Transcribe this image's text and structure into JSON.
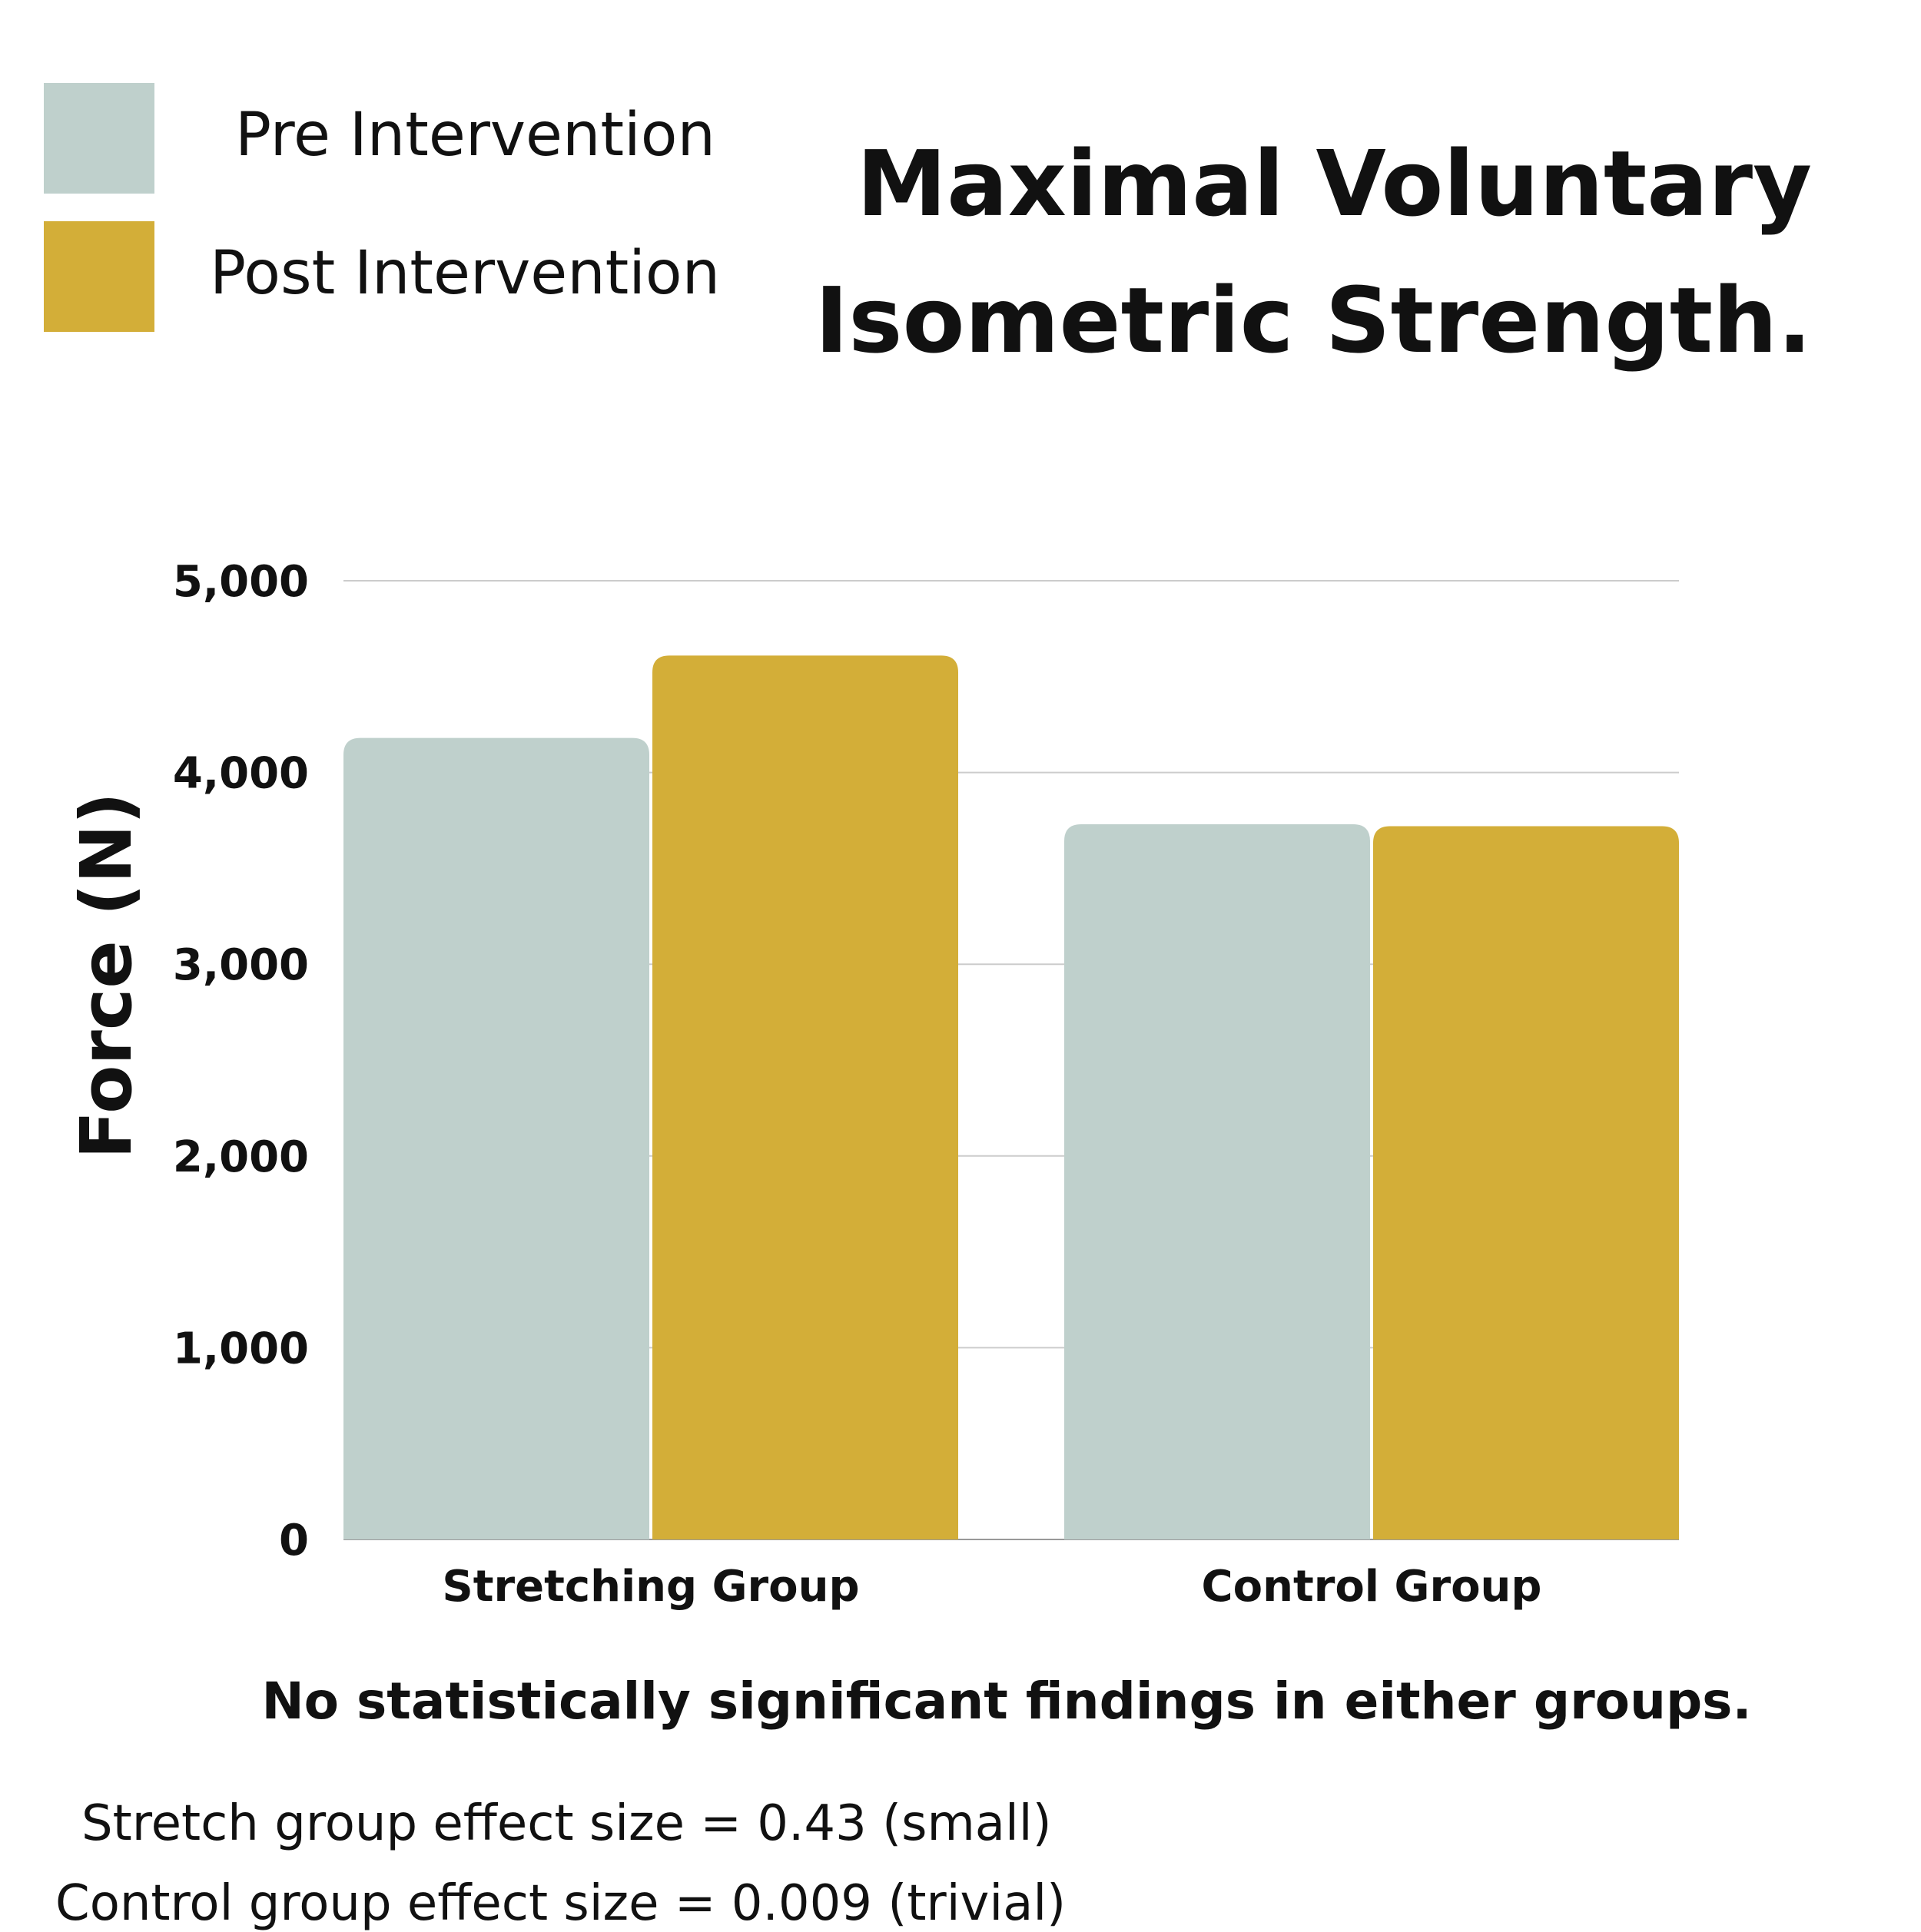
{
  "title": "Maximal Voluntary Isometric Strength.",
  "legend": {
    "items": [
      {
        "label": "Pre Intervention",
        "color": "#bfd0cc"
      },
      {
        "label": "Post Intervention",
        "color": "#d3ae38"
      }
    ]
  },
  "notes": {
    "significance": "No statistically significant findings in either groups.",
    "stretch_effect": "Stretch group effect size = 0.43 (small)",
    "control_effect": "Control group effect size = 0.009 (trivial)"
  },
  "colors": {
    "gridline": "#cccccc",
    "baseline": "#999999",
    "text": "#111111"
  },
  "chart_data": {
    "type": "bar",
    "title": "Maximal Voluntary Isometric Strength.",
    "xlabel": "",
    "ylabel": "Force (N)",
    "categories": [
      "Stretching Group",
      "Control Group"
    ],
    "series": [
      {
        "name": "Pre Intervention",
        "values": [
          4180,
          3730
        ],
        "color": "#bfd0cc"
      },
      {
        "name": "Post Intervention",
        "values": [
          4610,
          3720
        ],
        "color": "#d3ae38"
      }
    ],
    "ylim": [
      0,
      5000
    ],
    "yticks": [
      0,
      1000,
      2000,
      3000,
      4000,
      5000
    ],
    "ytick_labels": [
      "0",
      "1,000",
      "2,000",
      "3,000",
      "4,000",
      "5,000"
    ],
    "grid": true,
    "legend_position": "top-left"
  }
}
